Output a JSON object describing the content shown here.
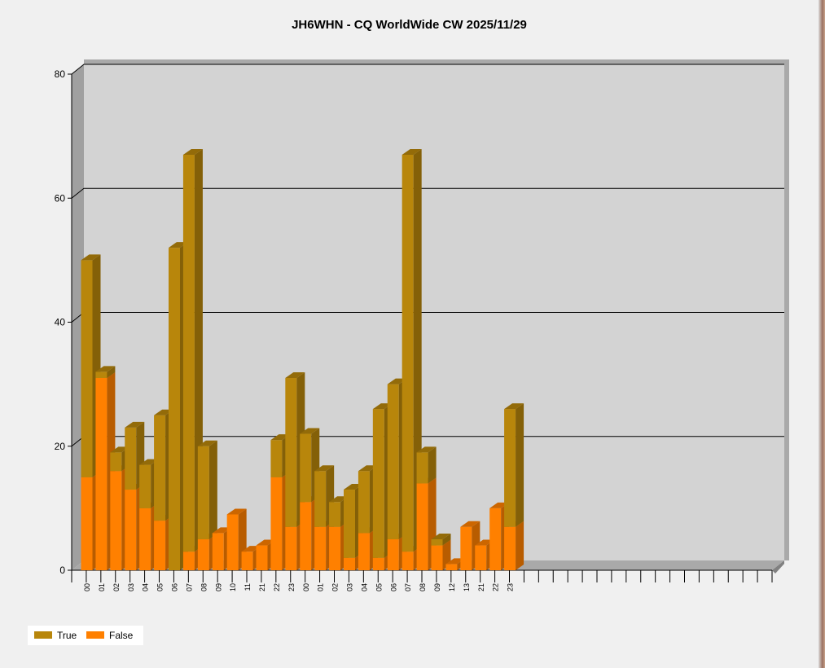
{
  "chart_data": {
    "type": "bar",
    "stacked": true,
    "three_d": true,
    "title": "JH6WHN - CQ WorldWide CW 2025/11/29",
    "categories": [
      "00",
      "01",
      "02",
      "03",
      "04",
      "05",
      "06",
      "07",
      "08",
      "09",
      "10",
      "11",
      "21",
      "22",
      "23",
      "00",
      "01",
      "02",
      "03",
      "04",
      "05",
      "06",
      "07",
      "08",
      "09",
      "12",
      "13",
      "21",
      "22",
      "23"
    ],
    "series": [
      {
        "name": "True",
        "color": "#b8860b",
        "values": [
          35,
          1,
          3,
          10,
          7,
          17,
          52,
          64,
          15,
          0,
          0,
          0,
          0,
          6,
          24,
          11,
          9,
          4,
          11,
          10,
          24,
          25,
          64,
          5,
          1,
          0,
          0,
          0,
          0,
          19
        ]
      },
      {
        "name": "False",
        "color": "#ff8000",
        "values": [
          15,
          31,
          16,
          13,
          10,
          8,
          0,
          3,
          5,
          6,
          9,
          3,
          4,
          15,
          7,
          11,
          7,
          7,
          2,
          6,
          2,
          5,
          3,
          14,
          4,
          1,
          7,
          4,
          10,
          7
        ]
      }
    ],
    "total_slots": 48,
    "ylim": [
      0,
      80
    ],
    "yticks": [
      0,
      20,
      40,
      60,
      80
    ],
    "grid": true,
    "legend_position": "bottom-left"
  }
}
